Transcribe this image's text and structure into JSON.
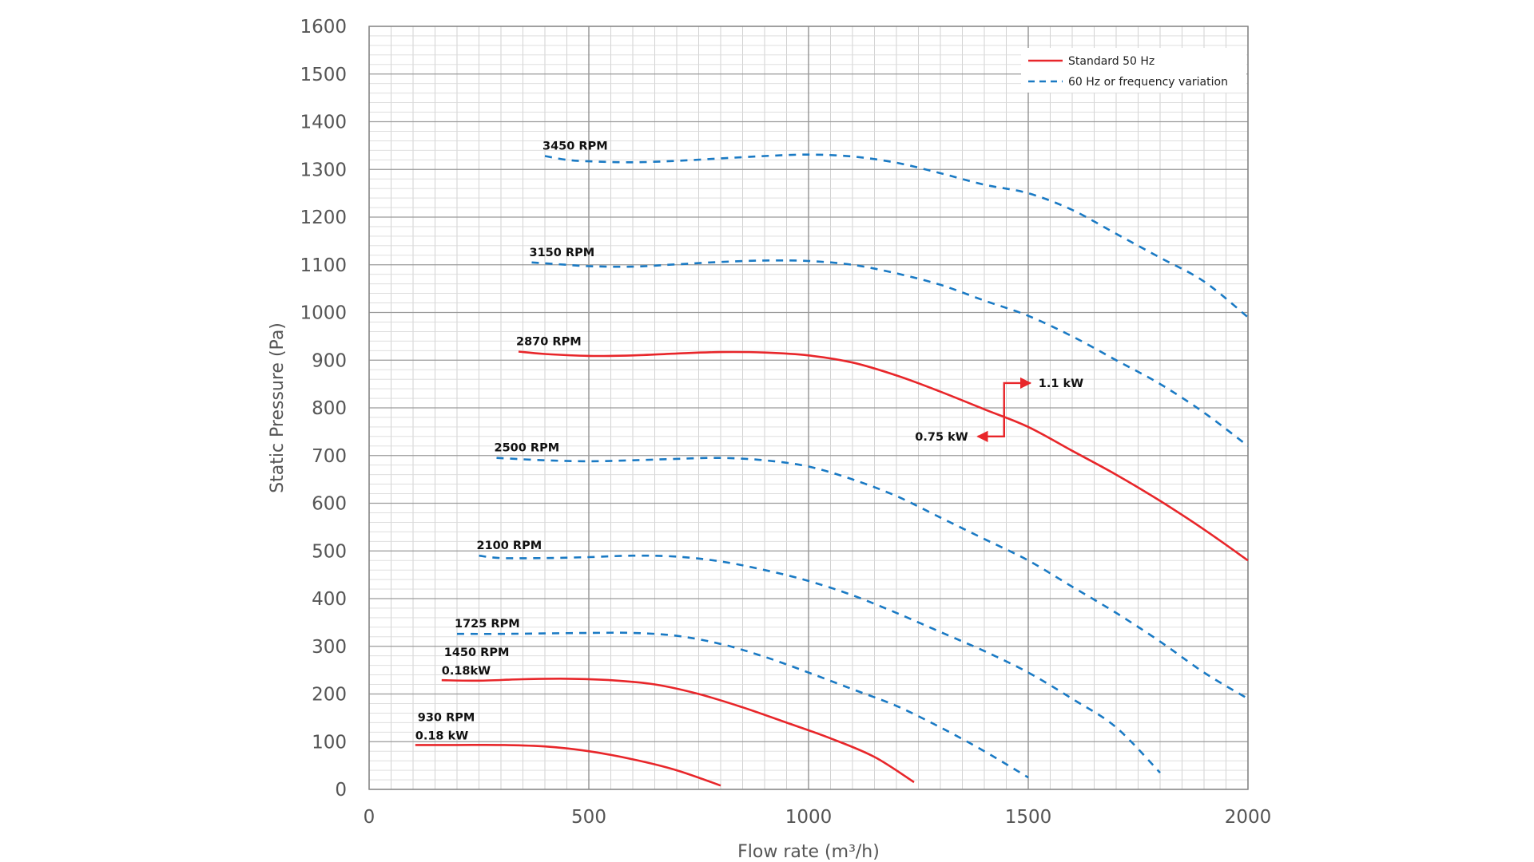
{
  "chart_data": {
    "type": "line",
    "title": "",
    "xlabel": "Flow rate (m³/h)",
    "ylabel": "Static Pressure (Pa)",
    "xlim": [
      0,
      2000
    ],
    "ylim": [
      0,
      1600
    ],
    "x_ticks": [
      "0",
      "500",
      "1000",
      "1500",
      "2000"
    ],
    "y_ticks": [
      "0",
      "100",
      "200",
      "300",
      "400",
      "500",
      "600",
      "700",
      "800",
      "900",
      "1000",
      "1100",
      "1200",
      "1300",
      "1400",
      "1500",
      "1600"
    ],
    "grid": true,
    "legend": {
      "placement": "top-right",
      "entries": [
        {
          "label": "Standard 50 Hz",
          "style": "solid",
          "color": "#e8262a"
        },
        {
          "label": "60 Hz or frequency variation",
          "style": "dashed",
          "color": "#1a7ac4"
        }
      ]
    },
    "colors": {
      "standard": "#e8262a",
      "variation": "#1a7ac4"
    },
    "series": [
      {
        "name": "3450 RPM",
        "style": "dashed",
        "x": [
          400,
          450,
          500,
          600,
          700,
          800,
          900,
          1000,
          1100,
          1200,
          1300,
          1400,
          1500,
          1600,
          1700,
          1800,
          1900,
          2000
        ],
        "y": [
          1328,
          1320,
          1317,
          1315,
          1318,
          1323,
          1328,
          1331,
          1327,
          1314,
          1292,
          1268,
          1250,
          1215,
          1165,
          1115,
          1065,
          990
        ]
      },
      {
        "name": "3150 RPM",
        "style": "dashed",
        "x": [
          370,
          450,
          500,
          600,
          700,
          800,
          900,
          1000,
          1100,
          1200,
          1300,
          1400,
          1500,
          1600,
          1700,
          1800,
          1900,
          2000
        ],
        "y": [
          1105,
          1100,
          1097,
          1096,
          1101,
          1106,
          1109,
          1108,
          1100,
          1082,
          1058,
          1025,
          993,
          950,
          900,
          850,
          790,
          720
        ]
      },
      {
        "name": "2870 RPM",
        "label": "2870 RPM",
        "style": "solid",
        "x": [
          340,
          400,
          500,
          600,
          700,
          800,
          900,
          1000,
          1100,
          1200,
          1300,
          1400,
          1500,
          1600,
          1700,
          1800,
          1900,
          2000
        ],
        "y": [
          918,
          913,
          909,
          910,
          914,
          917,
          916,
          910,
          895,
          868,
          834,
          797,
          760,
          710,
          660,
          605,
          545,
          480
        ]
      },
      {
        "name": "2500 RPM",
        "label": "2500 RPM",
        "style": "dashed",
        "x": [
          290,
          400,
          500,
          600,
          700,
          800,
          900,
          1000,
          1100,
          1200,
          1300,
          1400,
          1500,
          1600,
          1700,
          1800,
          1900,
          2000
        ],
        "y": [
          695,
          690,
          688,
          690,
          693,
          695,
          690,
          677,
          650,
          615,
          570,
          525,
          480,
          425,
          370,
          310,
          245,
          190
        ]
      },
      {
        "name": "2100 RPM",
        "label": "2100 RPM",
        "style": "dashed",
        "x": [
          250,
          300,
          400,
          500,
          600,
          700,
          800,
          900,
          1000,
          1100,
          1200,
          1300,
          1400,
          1500,
          1600,
          1700,
          1800
        ],
        "y": [
          490,
          485,
          485,
          487,
          490,
          488,
          478,
          460,
          437,
          407,
          370,
          330,
          290,
          245,
          190,
          130,
          35
        ]
      },
      {
        "name": "1725 RPM",
        "label": "1725 RPM",
        "style": "dashed",
        "x": [
          200,
          300,
          400,
          500,
          600,
          700,
          800,
          900,
          1000,
          1100,
          1200,
          1300,
          1400,
          1500
        ],
        "y": [
          326,
          326,
          327,
          328,
          328,
          322,
          305,
          278,
          245,
          210,
          175,
          130,
          80,
          25
        ]
      },
      {
        "name": "1450 RPM",
        "label": "1450 RPM",
        "sublabel": "0.18kW",
        "style": "solid",
        "x": [
          165,
          250,
          350,
          450,
          550,
          650,
          750,
          850,
          950,
          1050,
          1150,
          1240
        ],
        "y": [
          229,
          228,
          231,
          232,
          229,
          220,
          200,
          172,
          140,
          107,
          68,
          15
        ]
      },
      {
        "name": "930 RPM",
        "label": "930 RPM",
        "sublabel": "0.18 kW",
        "style": "solid",
        "x": [
          105,
          200,
          300,
          400,
          500,
          600,
          700,
          800
        ],
        "y": [
          93,
          93,
          93,
          90,
          80,
          63,
          40,
          8
        ]
      }
    ],
    "annotations": [
      {
        "text": "1.1 kW",
        "arrow_from": [
          1445,
          740
        ],
        "arrow_via": [
          1445,
          852
        ],
        "arrow_to": [
          1505,
          852
        ]
      },
      {
        "text": "0.75 kW",
        "arrow_from": [
          1445,
          790
        ],
        "arrow_via": [
          1445,
          740
        ],
        "arrow_to": [
          1385,
          740
        ]
      }
    ]
  }
}
